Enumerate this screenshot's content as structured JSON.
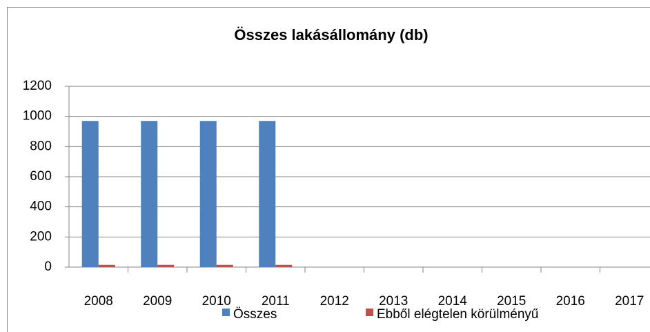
{
  "chart_data": {
    "type": "bar",
    "title": "Összes lakásállomány (db)",
    "categories": [
      "2008",
      "2009",
      "2010",
      "2011",
      "2012",
      "2013",
      "2014",
      "2015",
      "2016",
      "2017"
    ],
    "series": [
      {
        "name": "Összes",
        "color": "#4f81bd",
        "values": [
          970,
          970,
          970,
          970,
          null,
          null,
          null,
          null,
          null,
          null
        ]
      },
      {
        "name": "Ebből elégtelen körülményű",
        "color": "#c0504d",
        "values": [
          15,
          15,
          15,
          15,
          null,
          null,
          null,
          null,
          null,
          null
        ]
      }
    ],
    "ylim": [
      0,
      1200
    ],
    "yticks": [
      0,
      200,
      400,
      600,
      800,
      1000,
      1200
    ],
    "grid": true,
    "legend": "bottom"
  }
}
